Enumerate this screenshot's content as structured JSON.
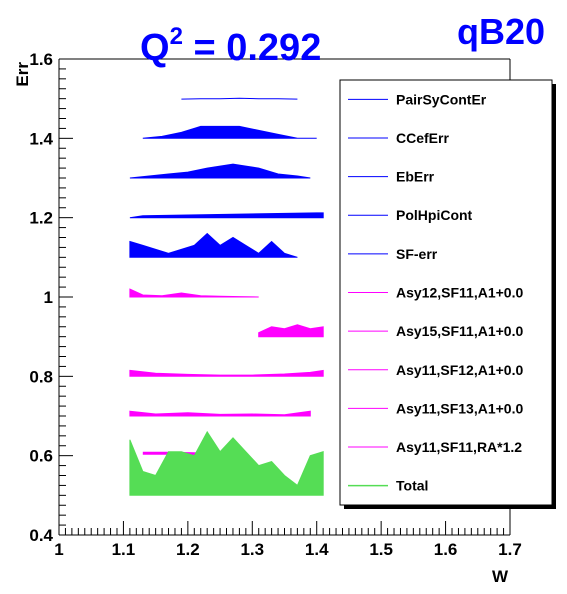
{
  "chart_data": {
    "type": "area",
    "title_main": "Q",
    "title_sup": "2",
    "title_rest": " = 0.292",
    "corner_label": "qB20",
    "xlabel": "W",
    "ylabel": "Err",
    "xlim": [
      1.0,
      1.7
    ],
    "ylim": [
      0.4,
      1.6
    ],
    "x_ticks": [
      "1",
      "1.1",
      "1.2",
      "1.3",
      "1.4",
      "1.5",
      "1.6",
      "1.7"
    ],
    "y_ticks": [
      "0.4",
      "0.6",
      "0.8",
      "1",
      "1.2",
      "1.4",
      "1.6"
    ],
    "legend_position": "right",
    "series": [
      {
        "name": "PairSyContEr",
        "color": "#0000ff",
        "style": "line",
        "x": [
          1.19,
          1.22,
          1.25,
          1.28,
          1.31,
          1.34,
          1.37
        ],
        "y": [
          1.499,
          1.5,
          1.5,
          1.501,
          1.5,
          1.5,
          1.499
        ]
      },
      {
        "name": "CCefErr",
        "color": "#0000ff",
        "style": "band",
        "x": [
          1.13,
          1.16,
          1.19,
          1.22,
          1.25,
          1.28,
          1.31,
          1.34,
          1.37,
          1.4
        ],
        "y": [
          1.4,
          1.4,
          1.4,
          1.4,
          1.4,
          1.4,
          1.4,
          1.4,
          1.4,
          1.4
        ],
        "y2": [
          1.4,
          1.405,
          1.415,
          1.43,
          1.43,
          1.43,
          1.42,
          1.41,
          1.4,
          1.4
        ]
      },
      {
        "name": "EbErr",
        "color": "#0000ff",
        "style": "band",
        "x": [
          1.11,
          1.14,
          1.17,
          1.2,
          1.23,
          1.25,
          1.27,
          1.29,
          1.31,
          1.34,
          1.37,
          1.39
        ],
        "y": [
          1.3,
          1.3,
          1.3,
          1.3,
          1.3,
          1.3,
          1.3,
          1.3,
          1.3,
          1.3,
          1.3,
          1.3
        ],
        "y2": [
          1.3,
          1.305,
          1.31,
          1.315,
          1.325,
          1.33,
          1.335,
          1.33,
          1.325,
          1.31,
          1.305,
          1.3
        ]
      },
      {
        "name": "PolHpiCont",
        "color": "#0000ff",
        "style": "band",
        "x": [
          1.11,
          1.13,
          1.4,
          1.41
        ],
        "y": [
          1.2,
          1.2,
          1.2,
          1.2
        ],
        "y2": [
          1.2,
          1.205,
          1.212,
          1.212
        ]
      },
      {
        "name": "SF-err",
        "color": "#0000ff",
        "style": "band",
        "x": [
          1.11,
          1.13,
          1.17,
          1.21,
          1.23,
          1.25,
          1.27,
          1.29,
          1.31,
          1.33,
          1.35,
          1.37
        ],
        "y": [
          1.1,
          1.1,
          1.1,
          1.1,
          1.1,
          1.1,
          1.1,
          1.1,
          1.1,
          1.1,
          1.1,
          1.1
        ],
        "y2": [
          1.14,
          1.13,
          1.11,
          1.13,
          1.16,
          1.13,
          1.15,
          1.13,
          1.11,
          1.14,
          1.11,
          1.1
        ]
      },
      {
        "name": "Asy12,SF11,A1+0.0",
        "color": "#ff00ff",
        "style": "band",
        "x": [
          1.11,
          1.13,
          1.16,
          1.19,
          1.22,
          1.25,
          1.28,
          1.31
        ],
        "y": [
          1.0,
          1.0,
          1.0,
          1.0,
          1.0,
          1.0,
          1.0,
          1.0
        ],
        "y2": [
          1.02,
          1.005,
          1.003,
          1.01,
          1.003,
          1.002,
          1.001,
          1.0
        ]
      },
      {
        "name": "Asy15,SF11,A1+0.0",
        "color": "#ff00ff",
        "style": "band",
        "x": [
          1.31,
          1.33,
          1.35,
          1.37,
          1.39,
          1.41
        ],
        "y": [
          0.9,
          0.9,
          0.9,
          0.9,
          0.9,
          0.9
        ],
        "y2": [
          0.91,
          0.925,
          0.92,
          0.93,
          0.92,
          0.925
        ]
      },
      {
        "name": "Asy11,SF12,A1+0.0",
        "color": "#ff00ff",
        "style": "band",
        "x": [
          1.11,
          1.15,
          1.2,
          1.25,
          1.3,
          1.35,
          1.39,
          1.41
        ],
        "y": [
          0.8,
          0.8,
          0.8,
          0.8,
          0.8,
          0.8,
          0.8,
          0.8
        ],
        "y2": [
          0.815,
          0.808,
          0.805,
          0.803,
          0.803,
          0.806,
          0.81,
          0.815
        ]
      },
      {
        "name": "Asy11,SF13,A1+0.0",
        "color": "#ff00ff",
        "style": "band",
        "x": [
          1.11,
          1.15,
          1.2,
          1.25,
          1.3,
          1.35,
          1.39
        ],
        "y": [
          0.7,
          0.7,
          0.7,
          0.7,
          0.7,
          0.7,
          0.7
        ],
        "y2": [
          0.712,
          0.705,
          0.708,
          0.704,
          0.705,
          0.703,
          0.712
        ]
      },
      {
        "name": "Asy11,SF11,RA*1.2",
        "color": "#ff00ff",
        "style": "line",
        "x": [
          1.13,
          1.17,
          1.21,
          1.25,
          1.29
        ],
        "y": [
          0.606,
          0.606,
          0.605,
          0.604,
          0.604
        ]
      },
      {
        "name": "Total",
        "color": "#55dd55",
        "style": "band",
        "x": [
          1.11,
          1.13,
          1.15,
          1.17,
          1.19,
          1.21,
          1.23,
          1.25,
          1.27,
          1.29,
          1.31,
          1.33,
          1.35,
          1.37,
          1.39,
          1.41
        ],
        "y": [
          0.5,
          0.5,
          0.5,
          0.5,
          0.5,
          0.5,
          0.5,
          0.5,
          0.5,
          0.5,
          0.5,
          0.5,
          0.5,
          0.5,
          0.5,
          0.5
        ],
        "y2": [
          0.64,
          0.56,
          0.55,
          0.61,
          0.61,
          0.6,
          0.66,
          0.61,
          0.645,
          0.61,
          0.575,
          0.585,
          0.55,
          0.525,
          0.6,
          0.61
        ]
      }
    ]
  }
}
